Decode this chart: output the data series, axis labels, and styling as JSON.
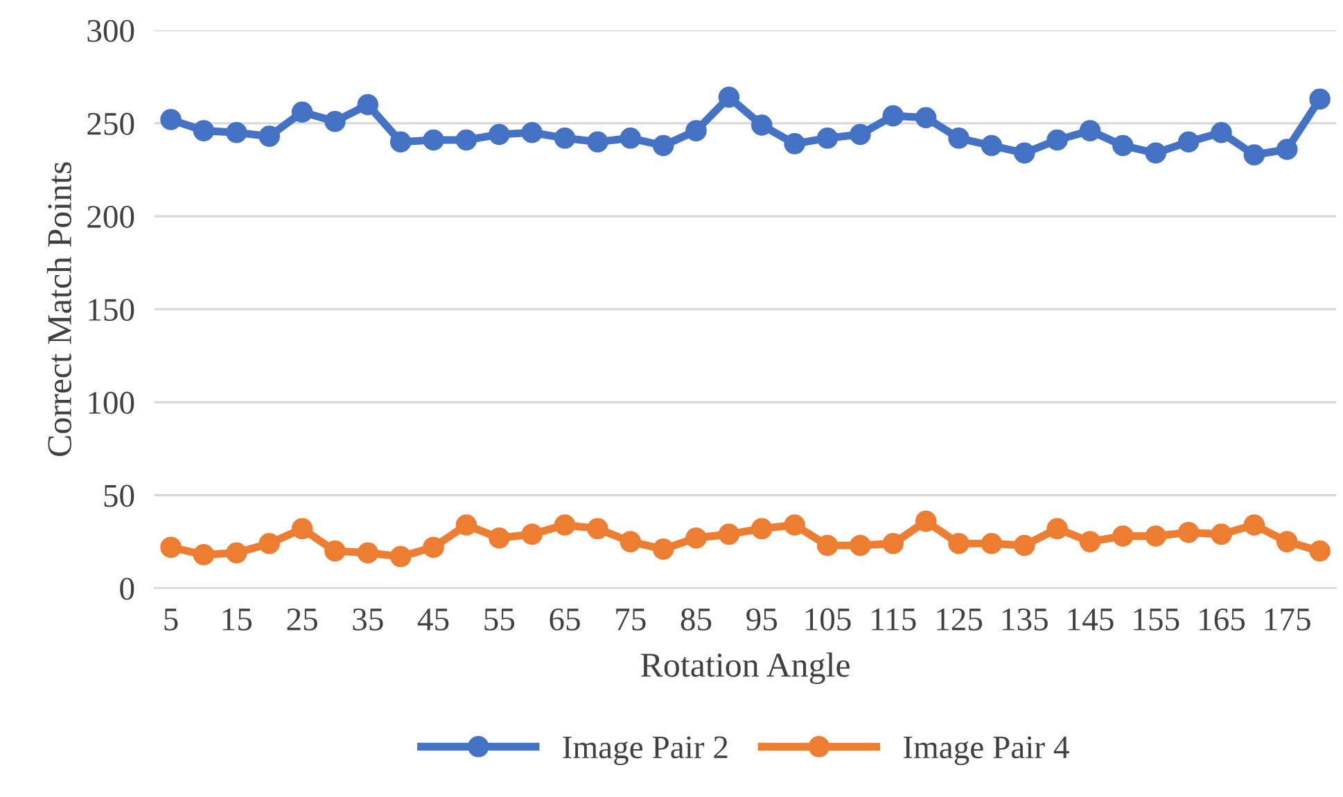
{
  "chart_data": {
    "type": "line",
    "xlabel": "Rotation Angle",
    "ylabel": "Correct Match Points",
    "categories": [
      "5",
      null,
      "15",
      null,
      "25",
      null,
      "35",
      null,
      "45",
      null,
      "55",
      null,
      "65",
      null,
      "75",
      null,
      "85",
      null,
      "95",
      null,
      "105",
      null,
      "115",
      null,
      "125",
      null,
      "135",
      null,
      "145",
      null,
      "155",
      null,
      "165",
      null,
      "175",
      null
    ],
    "series": [
      {
        "name": "Image Pair 2",
        "color": "#4472c4",
        "values": [
          252,
          246,
          245,
          243,
          256,
          251,
          260,
          240,
          241,
          241,
          244,
          245,
          242,
          240,
          242,
          238,
          246,
          264,
          249,
          239,
          242,
          244,
          254,
          253,
          242,
          238,
          234,
          241,
          246,
          238,
          234,
          240,
          245,
          233,
          236,
          263
        ]
      },
      {
        "name": "Image Pair 4",
        "color": "#ed7d31",
        "values": [
          22,
          18,
          19,
          24,
          32,
          20,
          19,
          17,
          22,
          34,
          27,
          29,
          34,
          32,
          25,
          21,
          27,
          29,
          32,
          34,
          23,
          23,
          24,
          36,
          24,
          24,
          23,
          32,
          25,
          28,
          28,
          30,
          29,
          34,
          25,
          20
        ]
      }
    ],
    "ylim": [
      0,
      300
    ],
    "yticks": [
      0,
      50,
      100,
      150,
      200,
      250,
      300
    ],
    "grid": "y",
    "legend": "bottom",
    "marker": "circle",
    "line_style": "solid"
  }
}
